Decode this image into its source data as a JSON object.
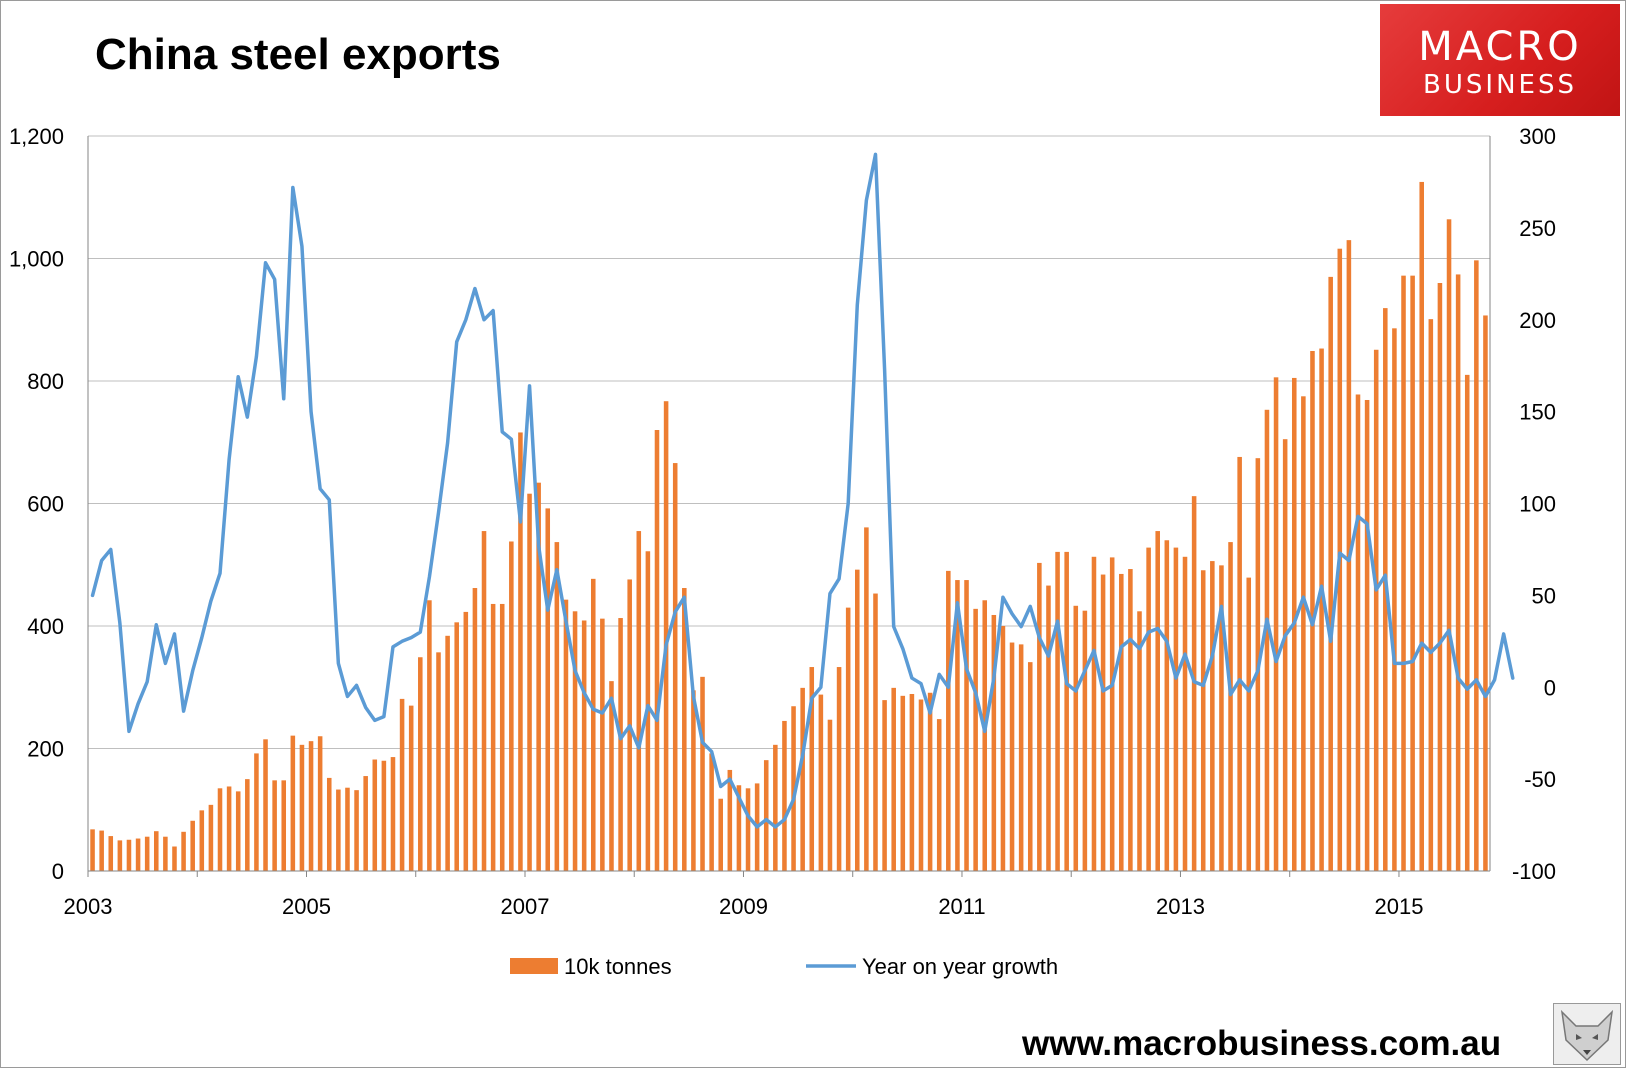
{
  "header": {
    "title": "China steel exports"
  },
  "logo": {
    "line1": "MACRO",
    "line2": "BUSINESS"
  },
  "footer": {
    "website": "www.macrobusiness.com.au"
  },
  "colors": {
    "bars": "#ED7D31",
    "line": "#5B9BD5",
    "grid": "#BFBFBF"
  },
  "chart_data": {
    "type": "bar+line",
    "title": "China steel exports",
    "x_start": "2003-01",
    "x_tick_labels": [
      "2003",
      "2005",
      "2007",
      "2009",
      "2011",
      "2013",
      "2015"
    ],
    "left_axis": {
      "ylim": [
        0,
        1200
      ],
      "ticks": [
        "0",
        "200",
        "400",
        "600",
        "800",
        "1,000",
        "1,200"
      ]
    },
    "right_axis": {
      "ylim": [
        -100,
        300
      ],
      "ticks": [
        "-100",
        "-50",
        "0",
        "50",
        "100",
        "150",
        "200",
        "250",
        "300"
      ]
    },
    "grid": true,
    "legend": {
      "position": "bottom"
    },
    "series": [
      {
        "name": "10k tonnes",
        "type": "bar",
        "axis": "left",
        "values": [
          68,
          66,
          57,
          50,
          51,
          53,
          56,
          65,
          56,
          40,
          64,
          82,
          99,
          108,
          135,
          138,
          130,
          150,
          192,
          215,
          148,
          148,
          221,
          206,
          212,
          220,
          152,
          133,
          136,
          132,
          155,
          182,
          180,
          186,
          281,
          270,
          349,
          442,
          357,
          384,
          406,
          423,
          462,
          555,
          436,
          436,
          538,
          716,
          616,
          634,
          592,
          537,
          443,
          424,
          409,
          477,
          412,
          310,
          413,
          476,
          555,
          522,
          720,
          767,
          666,
          462,
          295,
          317,
          192,
          118,
          165,
          140,
          135,
          143,
          181,
          206,
          245,
          269,
          299,
          333,
          288,
          247,
          333,
          430,
          492,
          561,
          453,
          279,
          299,
          286,
          289,
          280,
          291,
          248,
          490,
          475,
          475,
          428,
          442,
          418,
          400,
          373,
          370,
          341,
          503,
          466,
          521,
          521,
          433,
          425,
          513,
          484,
          512,
          485,
          493,
          424,
          528,
          555,
          540,
          528,
          513,
          612,
          491,
          506,
          499,
          537,
          676,
          479,
          674,
          753,
          806,
          705,
          805,
          775,
          849,
          853,
          970,
          1016,
          1030,
          778,
          769,
          851,
          919,
          886,
          972,
          972,
          1125,
          901,
          960,
          1064,
          974,
          810,
          997,
          907
        ]
      },
      {
        "name": "Year on year growth",
        "type": "line",
        "axis": "right",
        "values": [
          50,
          69,
          75,
          35,
          -24,
          -9,
          3,
          34,
          13,
          29,
          -13,
          9,
          27,
          47,
          62,
          124,
          169,
          147,
          180,
          231,
          222,
          157,
          272,
          240,
          150,
          108,
          102,
          13,
          -5,
          1,
          -11,
          -18,
          -16,
          22,
          25,
          27,
          30,
          60,
          95,
          133,
          188,
          200,
          217,
          200,
          205,
          139,
          135,
          90,
          164,
          77,
          42,
          64,
          36,
          9,
          -3,
          -12,
          -14,
          -6,
          -28,
          -21,
          -33,
          -10,
          -18,
          23,
          41,
          49,
          -5,
          -30,
          -35,
          -54,
          -50,
          -60,
          -70,
          -76,
          -72,
          -76,
          -72,
          -61,
          -37,
          -6,
          0,
          51,
          59,
          100,
          208,
          265,
          290,
          173,
          33,
          21,
          5,
          2,
          -14,
          7,
          0,
          46,
          10,
          -3,
          -24,
          5,
          49,
          40,
          33,
          44,
          27,
          17,
          36,
          2,
          -2,
          9,
          20,
          -2,
          1,
          22,
          26,
          21,
          30,
          32,
          25,
          5,
          18,
          3,
          1,
          17,
          44,
          -4,
          4,
          -2,
          9,
          37,
          14,
          28,
          35,
          49,
          34,
          55,
          25,
          73,
          69,
          93,
          89,
          53,
          61,
          13,
          13,
          14,
          24,
          19,
          24,
          31,
          5,
          -1,
          4,
          -5,
          4,
          29,
          5
        ]
      }
    ]
  }
}
